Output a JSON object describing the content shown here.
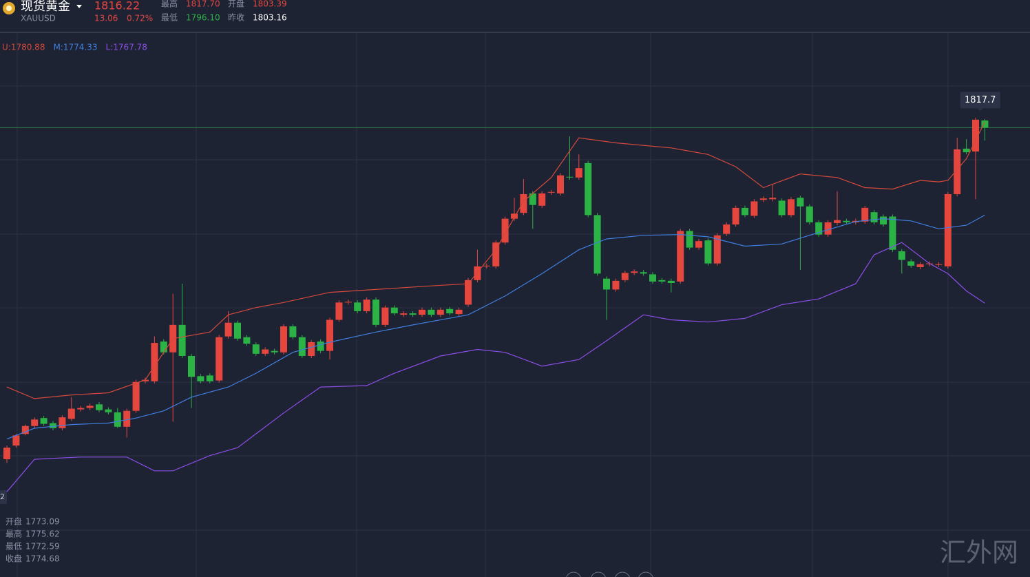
{
  "header": {
    "name": "现货黄金",
    "symbol": "XAUUSD",
    "price": "1816.22",
    "change": "13.06",
    "change_pct": "0.72%",
    "stats": [
      {
        "label": "最高",
        "value": "1817.70",
        "tone": "up"
      },
      {
        "label": "开盘",
        "value": "1803.39",
        "tone": "up"
      },
      {
        "label": "最低",
        "value": "1796.10",
        "tone": "down"
      },
      {
        "label": "昨收",
        "value": "1803.16",
        "tone": "flat"
      }
    ]
  },
  "crosshair": {
    "axis_label": "2",
    "info": [
      {
        "label": "开盘",
        "value": "1773.09"
      },
      {
        "label": "最高",
        "value": "1775.62"
      },
      {
        "label": "最低",
        "value": "1772.59"
      },
      {
        "label": "收盘",
        "value": "1774.68"
      }
    ]
  },
  "watermark": "汇外网",
  "chart_data": {
    "type": "candlestick",
    "ylim": [
      1755.5,
      1830.8
    ],
    "up_color": "#e5473f",
    "down_color": "#2cb346",
    "marker": {
      "value": 1817.7,
      "color": "#2f7a46"
    },
    "open": [
      1771.8,
      1773.7,
      1775.3,
      1776.4,
      1777.5,
      1776.8,
      1776.1,
      1777.4,
      1778.7,
      1778.9,
      1779.4,
      1778.7,
      1778.3,
      1776.3,
      1778.5,
      1782.6,
      1782.6,
      1788.1,
      1786.6,
      1790.4,
      1786.1,
      1783.3,
      1783.4,
      1782.7,
      1788.8,
      1790.7,
      1788.7,
      1787.7,
      1786.4,
      1786.8,
      1786.6,
      1790.2,
      1788.7,
      1786.1,
      1788.1,
      1786.8,
      1791.1,
      1793.5,
      1793.5,
      1792.3,
      1793.9,
      1790.4,
      1792.8,
      1791.8,
      1792.0,
      1791.8,
      1792.5,
      1791.8,
      1792.6,
      1791.9,
      1793.2,
      1796.6,
      1798.5,
      1798.5,
      1801.8,
      1805.1,
      1805.9,
      1808.6,
      1806.9,
      1808.7,
      1808.6,
      1810.9,
      1810.8,
      1812.8,
      1805.6,
      1796.8,
      1795.3,
      1796.6,
      1797.6,
      1797.7,
      1797.4,
      1796.6,
      1796.5,
      1796.4,
      1803.4,
      1801.1,
      1802.1,
      1798.9,
      1803.0,
      1804.3,
      1806.6,
      1805.5,
      1807.7,
      1807.8,
      1807.6,
      1805.6,
      1808.0,
      1806.8,
      1804.6,
      1802.9,
      1804.5,
      1804.8,
      1804.6,
      1804.7,
      1806.0,
      1805.4,
      1805.4,
      1800.6,
      1799.2,
      1798.4,
      1798.8,
      1798.7,
      1798.5,
      1808.5,
      1814.8,
      1814.4,
      1818.7
    ],
    "high": [
      1773.7,
      1775.3,
      1776.6,
      1777.6,
      1777.8,
      1777.1,
      1777.9,
      1780.4,
      1779.2,
      1779.5,
      1779.7,
      1779.0,
      1778.9,
      1778.8,
      1782.8,
      1783.1,
      1788.8,
      1788.4,
      1794.7,
      1796.1,
      1786.4,
      1783.6,
      1783.7,
      1789.0,
      1792.3,
      1791.0,
      1789.0,
      1788.0,
      1787.3,
      1787.1,
      1790.5,
      1790.5,
      1789.0,
      1788.3,
      1788.4,
      1791.4,
      1793.8,
      1793.9,
      1793.8,
      1794.2,
      1794.2,
      1793.1,
      1793.1,
      1792.3,
      1792.3,
      1792.8,
      1792.8,
      1792.8,
      1792.9,
      1792.8,
      1796.9,
      1800.8,
      1798.9,
      1802.1,
      1805.4,
      1808.0,
      1810.6,
      1808.9,
      1808.9,
      1809.1,
      1811.4,
      1816.5,
      1814.0,
      1813.1,
      1805.9,
      1797.1,
      1796.8,
      1797.9,
      1798.1,
      1798.0,
      1797.7,
      1796.9,
      1796.8,
      1803.7,
      1803.7,
      1802.3,
      1802.4,
      1803.1,
      1804.6,
      1806.9,
      1806.9,
      1807.8,
      1808.2,
      1809.9,
      1807.9,
      1808.1,
      1808.3,
      1807.1,
      1804.9,
      1804.9,
      1808.9,
      1805.1,
      1805.1,
      1806.9,
      1806.3,
      1805.7,
      1805.7,
      1800.9,
      1799.5,
      1799.1,
      1799.2,
      1799.1,
      1808.8,
      1816.3,
      1816.1,
      1819.1,
      1818.9
    ],
    "low": [
      1771.3,
      1773.4,
      1775.1,
      1776.1,
      1776.4,
      1775.8,
      1775.8,
      1777.1,
      1778.4,
      1778.6,
      1778.3,
      1778.0,
      1776.1,
      1774.8,
      1778.2,
      1782.3,
      1782.3,
      1786.3,
      1777.0,
      1785.8,
      1778.9,
      1782.3,
      1782.3,
      1782.4,
      1788.5,
      1788.2,
      1787.5,
      1786.1,
      1786.1,
      1786.3,
      1786.3,
      1788.4,
      1785.8,
      1785.8,
      1786.5,
      1785.6,
      1790.8,
      1793.2,
      1792.0,
      1792.0,
      1790.1,
      1790.1,
      1791.7,
      1791.5,
      1791.5,
      1791.5,
      1791.5,
      1791.5,
      1791.7,
      1791.6,
      1792.9,
      1796.3,
      1798.2,
      1798.2,
      1801.5,
      1804.8,
      1805.6,
      1803.7,
      1806.6,
      1808.4,
      1808.3,
      1810.5,
      1810.5,
      1805.3,
      1797.2,
      1791.1,
      1795.0,
      1796.3,
      1797.3,
      1797.2,
      1796.1,
      1796.1,
      1794.9,
      1796.1,
      1800.8,
      1800.8,
      1798.6,
      1798.6,
      1802.7,
      1804.0,
      1805.3,
      1805.2,
      1807.4,
      1807.5,
      1805.3,
      1805.3,
      1798.0,
      1804.3,
      1802.6,
      1802.6,
      1804.2,
      1804.3,
      1804.3,
      1804.4,
      1804.3,
      1804.0,
      1800.5,
      1797.5,
      1798.3,
      1798.1,
      1798.5,
      1798.4,
      1798.2,
      1808.2,
      1814.0,
      1807.8,
      1815.9
    ],
    "close": [
      1773.4,
      1775.1,
      1776.4,
      1777.3,
      1776.7,
      1776.1,
      1777.6,
      1778.8,
      1778.9,
      1779.2,
      1778.6,
      1778.3,
      1776.3,
      1778.5,
      1782.5,
      1782.8,
      1787.9,
      1786.6,
      1790.4,
      1786.1,
      1783.2,
      1782.6,
      1782.6,
      1788.7,
      1790.7,
      1788.5,
      1787.8,
      1786.4,
      1787.0,
      1786.6,
      1790.2,
      1788.7,
      1786.1,
      1788.0,
      1786.8,
      1791.1,
      1793.5,
      1793.6,
      1792.3,
      1793.9,
      1790.4,
      1792.8,
      1792.0,
      1792.0,
      1791.8,
      1792.5,
      1791.8,
      1792.5,
      1792.0,
      1792.5,
      1796.6,
      1798.5,
      1798.6,
      1801.8,
      1805.1,
      1805.8,
      1808.5,
      1807.0,
      1808.6,
      1808.8,
      1811.1,
      1810.8,
      1812.1,
      1805.6,
      1797.5,
      1795.3,
      1796.5,
      1797.6,
      1797.8,
      1797.5,
      1796.4,
      1796.4,
      1796.2,
      1803.4,
      1801.1,
      1802.0,
      1798.9,
      1802.8,
      1804.3,
      1806.6,
      1805.6,
      1807.5,
      1807.9,
      1808.0,
      1805.6,
      1807.8,
      1806.8,
      1804.6,
      1802.9,
      1804.6,
      1804.9,
      1804.6,
      1804.8,
      1806.6,
      1804.6,
      1804.3,
      1800.8,
      1799.4,
      1798.6,
      1798.8,
      1798.9,
      1798.8,
      1808.5,
      1814.7,
      1814.3,
      1818.8,
      1817.7
    ],
    "series": [
      {
        "name": "U:1780.88",
        "color": "#d4493b",
        "x": [
          0,
          3,
          7,
          11,
          15,
          18,
          22,
          24,
          27,
          30,
          35,
          40,
          46,
          50,
          53,
          56,
          59,
          62,
          66,
          72,
          76,
          79,
          82,
          86,
          90,
          93,
          96,
          99,
          101,
          102,
          104,
          106
        ],
        "values": [
          1781.8,
          1780.2,
          1780.7,
          1781.0,
          1782.8,
          1788.5,
          1789.4,
          1791.8,
          1792.8,
          1793.5,
          1794.9,
          1795.3,
          1795.8,
          1796.1,
          1800.8,
          1807.5,
          1810.8,
          1816.3,
          1815.6,
          1814.9,
          1814.0,
          1812.3,
          1809.4,
          1811.3,
          1810.8,
          1809.4,
          1809.2,
          1810.4,
          1810.2,
          1810.4,
          1813.4,
          1818.5
        ]
      },
      {
        "name": "M:1774.33",
        "color": "#3f7fe0",
        "x": [
          0,
          3,
          7,
          11,
          14,
          17,
          20,
          24,
          27,
          31,
          35,
          40,
          44,
          50,
          54,
          58,
          62,
          65,
          69,
          73,
          76,
          80,
          84,
          88,
          92,
          95,
          98,
          101,
          104,
          106
        ],
        "values": [
          1774.6,
          1776.1,
          1776.6,
          1776.8,
          1777.5,
          1778.5,
          1780.4,
          1781.8,
          1783.7,
          1786.6,
          1788.0,
          1789.4,
          1790.4,
          1791.8,
          1794.4,
          1797.5,
          1800.8,
          1802.3,
          1802.8,
          1802.9,
          1802.6,
          1801.3,
          1801.6,
          1803.2,
          1804.7,
          1805.1,
          1804.8,
          1803.7,
          1804.2,
          1805.6
        ]
      },
      {
        "name": "L:1767.78",
        "color": "#8b4ee6",
        "x": [
          0,
          3,
          8,
          13,
          16,
          18,
          22,
          25,
          30,
          34,
          39,
          42,
          47,
          51,
          54,
          58,
          62,
          65,
          69,
          72,
          76,
          80,
          84,
          88,
          92,
          94,
          97,
          100,
          102,
          104,
          106
        ],
        "values": [
          1767.3,
          1771.8,
          1772.1,
          1772.1,
          1770.2,
          1770.2,
          1772.3,
          1773.4,
          1778.2,
          1781.8,
          1782.0,
          1783.7,
          1786.1,
          1787.0,
          1786.6,
          1784.7,
          1785.6,
          1788.2,
          1791.8,
          1791.1,
          1790.8,
          1791.3,
          1793.2,
          1794.0,
          1796.1,
          1800.1,
          1801.8,
          1798.9,
          1797.5,
          1795.1,
          1793.4
        ]
      }
    ]
  }
}
